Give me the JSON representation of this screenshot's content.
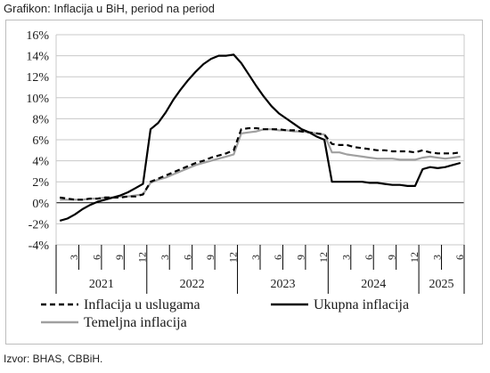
{
  "title": "Grafikon: Inflacija u BiH, period na period",
  "source": "Izvor: BHAS, CBBiH.",
  "chart_data": {
    "type": "line",
    "title": "Grafikon: Inflacija u BiH, period na period",
    "xlabel": "",
    "ylabel": "",
    "ylim": [
      -4,
      16
    ],
    "yticks": [
      "16%",
      "14%",
      "12%",
      "10%",
      "8%",
      "6%",
      "4%",
      "2%",
      "0%",
      "-2%",
      "-4%"
    ],
    "ytick_values": [
      16,
      14,
      12,
      10,
      8,
      6,
      4,
      2,
      0,
      -2,
      -4
    ],
    "grid": "horizontal",
    "legend": "bottom",
    "x_months": [
      "2021-01",
      "2021-02",
      "2021-03",
      "2021-04",
      "2021-05",
      "2021-06",
      "2021-07",
      "2021-08",
      "2021-09",
      "2021-10",
      "2021-11",
      "2021-12",
      "2022-01",
      "2022-02",
      "2022-03",
      "2022-04",
      "2022-05",
      "2022-06",
      "2022-07",
      "2022-08",
      "2022-09",
      "2022-10",
      "2022-11",
      "2022-12",
      "2023-01",
      "2023-02",
      "2023-03",
      "2023-04",
      "2023-05",
      "2023-06",
      "2023-07",
      "2023-08",
      "2023-09",
      "2023-10",
      "2023-11",
      "2023-12",
      "2024-01",
      "2024-02",
      "2024-03",
      "2024-04",
      "2024-05",
      "2024-06",
      "2024-07",
      "2024-08",
      "2024-09",
      "2024-10",
      "2024-11",
      "2024-12",
      "2025-01",
      "2025-02",
      "2025-03",
      "2025-04",
      "2025-05",
      "2025-06"
    ],
    "month_tick_labels": [
      "3",
      "6",
      "9",
      "12",
      "3",
      "6",
      "9",
      "12",
      "3",
      "6",
      "9",
      "12",
      "3",
      "6",
      "9",
      "12",
      "3",
      "6"
    ],
    "month_tick_positions": [
      3,
      6,
      9,
      12,
      15,
      18,
      21,
      24,
      27,
      30,
      33,
      36,
      39,
      42,
      45,
      48,
      51,
      54
    ],
    "years": [
      {
        "label": "2021",
        "start": 0,
        "end": 12
      },
      {
        "label": "2022",
        "start": 12,
        "end": 24
      },
      {
        "label": "2023",
        "start": 24,
        "end": 36
      },
      {
        "label": "2024",
        "start": 36,
        "end": 48
      },
      {
        "label": "2025",
        "start": 48,
        "end": 54
      }
    ],
    "series": [
      {
        "name": "Inflacija u uslugama",
        "color": "#000000",
        "style": "dashed",
        "values": [
          0.5,
          0.4,
          0.3,
          0.3,
          0.4,
          0.4,
          0.5,
          0.5,
          0.5,
          0.6,
          0.6,
          0.8,
          2.0,
          2.3,
          2.6,
          2.9,
          3.2,
          3.5,
          3.8,
          4.0,
          4.3,
          4.5,
          4.7,
          5.0,
          7.0,
          7.1,
          7.1,
          7.0,
          7.0,
          7.0,
          6.9,
          6.9,
          6.8,
          6.7,
          6.6,
          6.5,
          5.6,
          5.5,
          5.5,
          5.3,
          5.2,
          5.1,
          5.0,
          5.0,
          4.9,
          4.9,
          4.9,
          4.8,
          5.0,
          4.8,
          4.7,
          4.7,
          4.7,
          4.8
        ]
      },
      {
        "name": "Ukupna inflacija",
        "color": "#000000",
        "style": "solid",
        "values": [
          -1.7,
          -1.5,
          -1.1,
          -0.6,
          -0.2,
          0.1,
          0.3,
          0.5,
          0.7,
          1.0,
          1.4,
          1.8,
          7.0,
          7.6,
          8.6,
          9.8,
          10.8,
          11.7,
          12.5,
          13.2,
          13.7,
          14.0,
          14.0,
          14.1,
          13.3,
          12.2,
          11.1,
          10.1,
          9.2,
          8.5,
          8.0,
          7.5,
          7.0,
          6.7,
          6.3,
          6.0,
          2.0,
          2.0,
          2.0,
          2.0,
          2.0,
          1.9,
          1.9,
          1.8,
          1.7,
          1.7,
          1.6,
          1.6,
          3.2,
          3.4,
          3.3,
          3.4,
          3.6,
          3.8
        ]
      },
      {
        "name": "Temeljna inflacija",
        "color": "#a0a0a0",
        "style": "solid",
        "values": [
          0.3,
          0.3,
          0.3,
          0.3,
          0.4,
          0.4,
          0.5,
          0.5,
          0.6,
          0.6,
          0.7,
          0.8,
          1.9,
          2.2,
          2.4,
          2.7,
          3.0,
          3.3,
          3.6,
          3.8,
          4.0,
          4.2,
          4.4,
          4.6,
          6.6,
          6.7,
          6.8,
          7.0,
          7.0,
          6.9,
          6.9,
          6.8,
          6.8,
          6.7,
          6.6,
          6.5,
          4.8,
          4.8,
          4.6,
          4.5,
          4.4,
          4.3,
          4.2,
          4.2,
          4.2,
          4.1,
          4.1,
          4.1,
          4.3,
          4.4,
          4.3,
          4.2,
          4.3,
          4.4
        ]
      }
    ]
  }
}
